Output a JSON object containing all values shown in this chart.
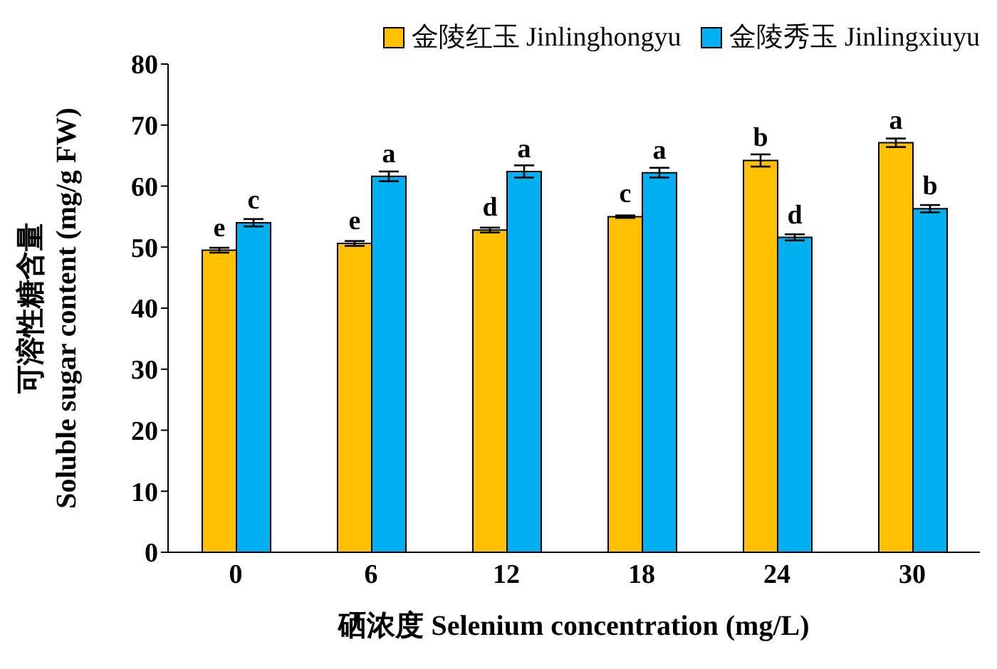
{
  "chart_data": {
    "type": "bar",
    "xlabel": "硒浓度 Selenium concentration (mg/L)",
    "ylabel": "可溶性糖含量\nSoluble sugar content (mg/g FW)",
    "categories": [
      "0",
      "6",
      "12",
      "18",
      "24",
      "30"
    ],
    "series": [
      {
        "name": "金陵红玉 Jinlinghongyu",
        "color": "#ffc000",
        "values": [
          49.5,
          50.6,
          52.8,
          55,
          64.2,
          67.1
        ],
        "errors": [
          0.4,
          0.4,
          0.4,
          0.2,
          1,
          0.7
        ],
        "value_labels": [
          "e",
          "e",
          "d",
          "c",
          "b",
          "a"
        ]
      },
      {
        "name": "金陵秀玉 Jinlingxiuyu",
        "color": "#00b0f0",
        "values": [
          54,
          61.6,
          62.4,
          62.2,
          51.6,
          56.3
        ],
        "errors": [
          0.6,
          0.8,
          1,
          0.8,
          0.5,
          0.6
        ],
        "value_labels": [
          "c",
          "a",
          "a",
          "a",
          "d",
          "b"
        ]
      }
    ],
    "ylim": [
      0,
      80
    ],
    "yticks": [
      0,
      10,
      20,
      30,
      40,
      50,
      60,
      70,
      80
    ],
    "legend": "top right"
  }
}
